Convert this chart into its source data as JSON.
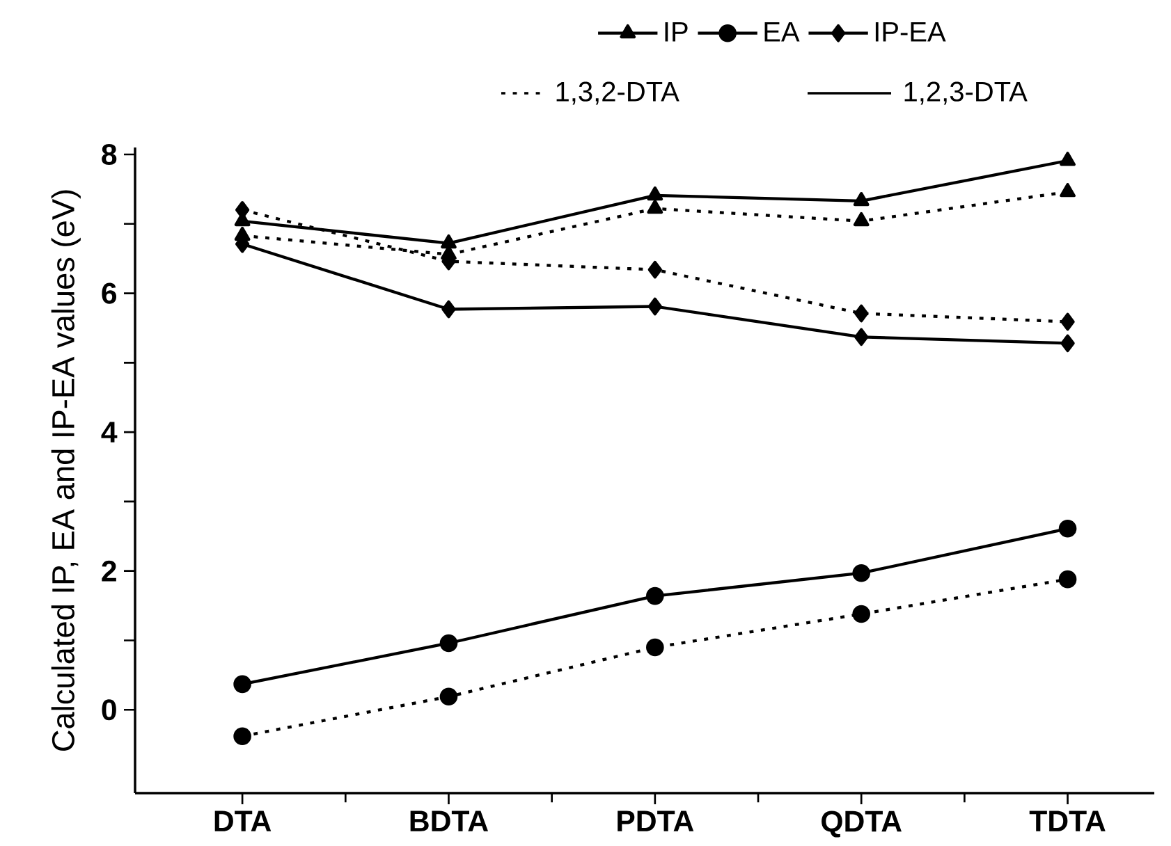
{
  "chart_data": {
    "type": "line",
    "ylabel": "Calculated IP, EA and IP-EA values (eV)",
    "categories": [
      "DTA",
      "BDTA",
      "PDTA",
      "QDTA",
      "TDTA"
    ],
    "series": [
      {
        "name": "IP",
        "color": "#000000",
        "marker": "triangle",
        "line_style": "solid",
        "values": [
          7.04,
          6.72,
          7.41,
          7.33,
          7.91
        ]
      },
      {
        "color": "#000000",
        "marker": "triangle",
        "line_style": "dashed",
        "values": [
          6.83,
          6.56,
          7.22,
          7.04,
          7.46
        ]
      },
      {
        "name": "EA",
        "color": "#000000",
        "marker": "circle",
        "line_style": "solid",
        "values": [
          0.37,
          0.96,
          1.64,
          1.97,
          2.61
        ]
      },
      {
        "color": "#000000",
        "marker": "circle",
        "line_style": "dashed",
        "values": [
          -0.38,
          0.19,
          0.9,
          1.38,
          1.88
        ]
      },
      {
        "name": "IP-EA",
        "color": "#000000",
        "marker": "diamond",
        "line_style": "solid",
        "values": [
          6.71,
          5.77,
          5.81,
          5.37,
          5.28
        ]
      },
      {
        "color": "#000000",
        "marker": "diamond",
        "line_style": "dashed",
        "values": [
          7.2,
          6.46,
          6.34,
          5.71,
          5.59
        ]
      }
    ],
    "ylim": [
      -1.2,
      8.1
    ],
    "yticks": [
      0,
      {
        "value": 1,
        "label": null
      },
      2,
      {
        "value": 3,
        "label": null
      },
      4,
      {
        "value": 5,
        "label": null
      },
      6,
      {
        "value": 7,
        "label": null
      },
      8
    ],
    "legend": "top",
    "annotations": [
      "1,3,2-DTA",
      "1,2,3-DTA"
    ]
  }
}
